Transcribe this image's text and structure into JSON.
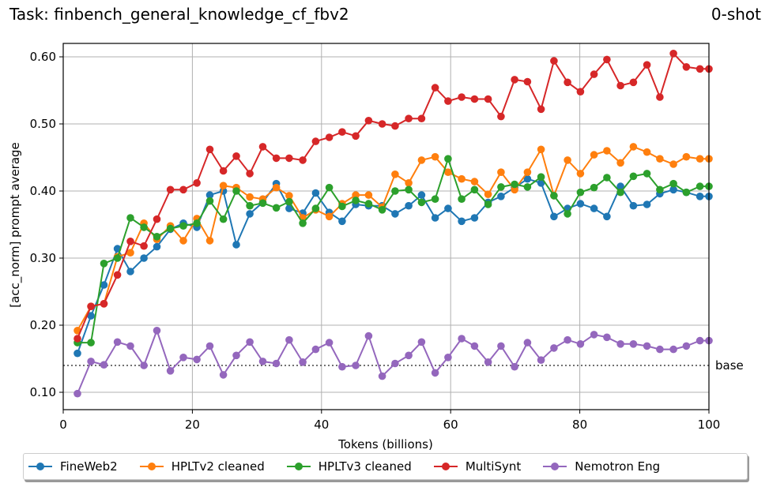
{
  "header": {
    "title": "Task: finbench_general_knowledge_cf_fbv2",
    "shot": "0-shot"
  },
  "chart_data": {
    "type": "line",
    "title": "Task: finbench_general_knowledge_cf_fbv2",
    "subtitle": "0-shot",
    "xlabel": "Tokens (billions)",
    "ylabel": "[acc_norm] prompt average",
    "xlim": [
      0,
      100
    ],
    "ylim": [
      0.07,
      0.63
    ],
    "xticks": [
      0,
      20,
      40,
      60,
      80,
      100
    ],
    "yticks": [
      0.1,
      0.2,
      0.3,
      0.4,
      0.5,
      0.6
    ],
    "ytick_labels": [
      "0.10",
      "0.20",
      "0.30",
      "0.40",
      "0.50",
      "0.60"
    ],
    "grid": true,
    "legend_position": "bottom-outside",
    "baseline": {
      "label": "base",
      "value": 0.14,
      "style": "dotted",
      "color": "#444444"
    },
    "x": [
      2.2,
      4.3,
      6.3,
      8.4,
      10.4,
      12.5,
      14.5,
      16.6,
      18.6,
      20.7,
      22.7,
      24.8,
      26.8,
      28.9,
      30.9,
      33.0,
      35.0,
      37.1,
      39.1,
      41.2,
      43.2,
      45.3,
      47.3,
      49.4,
      51.4,
      53.5,
      55.5,
      57.6,
      59.6,
      61.7,
      63.7,
      65.8,
      67.8,
      69.9,
      71.9,
      74.0,
      76.0,
      78.1,
      80.1,
      82.2,
      84.2,
      86.3,
      88.3,
      90.4,
      92.4,
      94.5,
      96.5,
      98.6,
      100.0
    ],
    "series": [
      {
        "name": "FineWeb2",
        "color": "#1f77b4",
        "values": [
          0.158,
          0.214,
          0.26,
          0.314,
          0.28,
          0.3,
          0.317,
          0.343,
          0.352,
          0.346,
          0.394,
          0.4,
          0.32,
          0.366,
          0.383,
          0.411,
          0.374,
          0.367,
          0.397,
          0.368,
          0.355,
          0.38,
          0.378,
          0.378,
          0.366,
          0.378,
          0.394,
          0.36,
          0.374,
          0.355,
          0.36,
          0.383,
          0.392,
          0.405,
          0.418,
          0.412,
          0.362,
          0.374,
          0.381,
          0.374,
          0.362,
          0.407,
          0.378,
          0.38,
          0.396,
          0.402,
          0.398,
          0.392,
          0.392
        ]
      },
      {
        "name": "HPLTv2 cleaned",
        "color": "#ff7f0e",
        "values": [
          0.192,
          0.228,
          0.232,
          0.302,
          0.308,
          0.352,
          0.328,
          0.348,
          0.326,
          0.359,
          0.326,
          0.408,
          0.405,
          0.391,
          0.388,
          0.405,
          0.393,
          0.36,
          0.372,
          0.362,
          0.381,
          0.394,
          0.394,
          0.376,
          0.425,
          0.412,
          0.446,
          0.451,
          0.428,
          0.418,
          0.414,
          0.395,
          0.428,
          0.402,
          0.428,
          0.462,
          0.393,
          0.446,
          0.426,
          0.454,
          0.46,
          0.442,
          0.466,
          0.458,
          0.448,
          0.44,
          0.451,
          0.448,
          0.448
        ]
      },
      {
        "name": "HPLTv3 cleaned",
        "color": "#2ca02c",
        "values": [
          0.174,
          0.174,
          0.292,
          0.3,
          0.36,
          0.346,
          0.332,
          0.344,
          0.348,
          0.352,
          0.385,
          0.358,
          0.4,
          0.378,
          0.382,
          0.375,
          0.384,
          0.352,
          0.374,
          0.405,
          0.377,
          0.386,
          0.381,
          0.372,
          0.4,
          0.402,
          0.383,
          0.388,
          0.448,
          0.388,
          0.402,
          0.38,
          0.406,
          0.41,
          0.406,
          0.421,
          0.393,
          0.366,
          0.398,
          0.405,
          0.42,
          0.398,
          0.422,
          0.426,
          0.402,
          0.411,
          0.398,
          0.407,
          0.407
        ]
      },
      {
        "name": "MultiSynt",
        "color": "#d62728",
        "values": [
          0.18,
          0.228,
          0.232,
          0.275,
          0.325,
          0.318,
          0.358,
          0.402,
          0.402,
          0.412,
          0.462,
          0.43,
          0.452,
          0.426,
          0.466,
          0.449,
          0.449,
          0.446,
          0.474,
          0.48,
          0.488,
          0.482,
          0.505,
          0.5,
          0.497,
          0.508,
          0.508,
          0.554,
          0.534,
          0.54,
          0.537,
          0.537,
          0.511,
          0.566,
          0.563,
          0.522,
          0.594,
          0.562,
          0.548,
          0.574,
          0.596,
          0.557,
          0.562,
          0.588,
          0.54,
          0.605,
          0.585,
          0.582,
          0.582
        ]
      },
      {
        "name": "Nemotron Eng",
        "color": "#9467bd",
        "values": [
          0.098,
          0.146,
          0.141,
          0.175,
          0.169,
          0.14,
          0.192,
          0.132,
          0.152,
          0.149,
          0.169,
          0.126,
          0.155,
          0.175,
          0.146,
          0.143,
          0.178,
          0.145,
          0.164,
          0.174,
          0.138,
          0.14,
          0.184,
          0.124,
          0.143,
          0.155,
          0.175,
          0.129,
          0.152,
          0.18,
          0.169,
          0.145,
          0.169,
          0.138,
          0.174,
          0.148,
          0.166,
          0.178,
          0.172,
          0.186,
          0.182,
          0.172,
          0.172,
          0.169,
          0.164,
          0.164,
          0.169,
          0.177,
          0.177
        ]
      }
    ]
  },
  "axes": {
    "xlabel": "Tokens (billions)",
    "ylabel": "[acc_norm] prompt average",
    "xtick_labels": [
      "0",
      "20",
      "40",
      "60",
      "80",
      "100"
    ],
    "ytick_labels": [
      "0.10",
      "0.20",
      "0.30",
      "0.40",
      "0.50",
      "0.60"
    ],
    "baseline_label": "base"
  },
  "legend": {
    "items": [
      {
        "label": "FineWeb2",
        "color": "#1f77b4"
      },
      {
        "label": "HPLTv2 cleaned",
        "color": "#ff7f0e"
      },
      {
        "label": "HPLTv3 cleaned",
        "color": "#2ca02c"
      },
      {
        "label": "MultiSynt",
        "color": "#d62728"
      },
      {
        "label": "Nemotron Eng",
        "color": "#9467bd"
      }
    ]
  }
}
